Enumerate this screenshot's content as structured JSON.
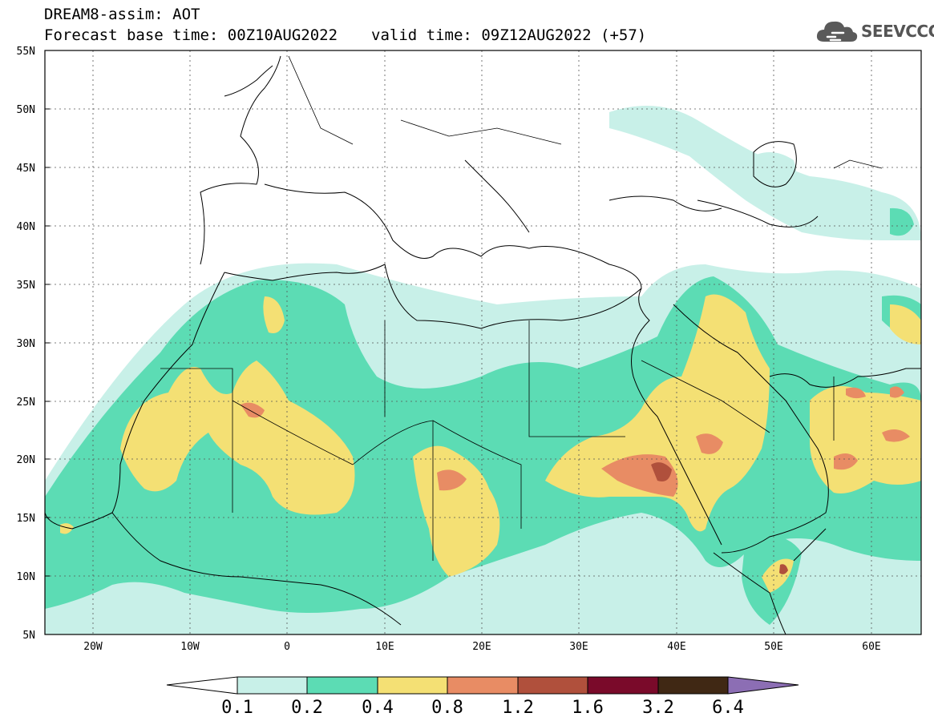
{
  "header": {
    "title": "DREAM8-assim: AOT",
    "base_time": "Forecast base time: 00Z10AUG2022",
    "valid_time": "valid time: 09Z12AUG2022 (+57)"
  },
  "logo": {
    "text": "SEEVCCC",
    "icon": "cloud-icon"
  },
  "map": {
    "variable": "AOT",
    "lon_range": [
      -25,
      65
    ],
    "lat_range": [
      5,
      55
    ],
    "lat_ticks": [
      "5N",
      "10N",
      "15N",
      "20N",
      "25N",
      "30N",
      "35N",
      "40N",
      "45N",
      "50N",
      "55N"
    ],
    "lon_ticks": [
      "20W",
      "10W",
      "0",
      "10E",
      "20E",
      "30E",
      "40E",
      "50E",
      "60E"
    ]
  },
  "colorbar": {
    "levels": [
      "0.1",
      "0.2",
      "0.4",
      "0.8",
      "1.2",
      "1.6",
      "3.2",
      "6.4"
    ],
    "colors": [
      "#ffffff",
      "#c8f0e8",
      "#5cdcb4",
      "#f4e074",
      "#e88c64",
      "#b0503c",
      "#7a0a2a",
      "#402814",
      "#8c6eb4"
    ]
  }
}
